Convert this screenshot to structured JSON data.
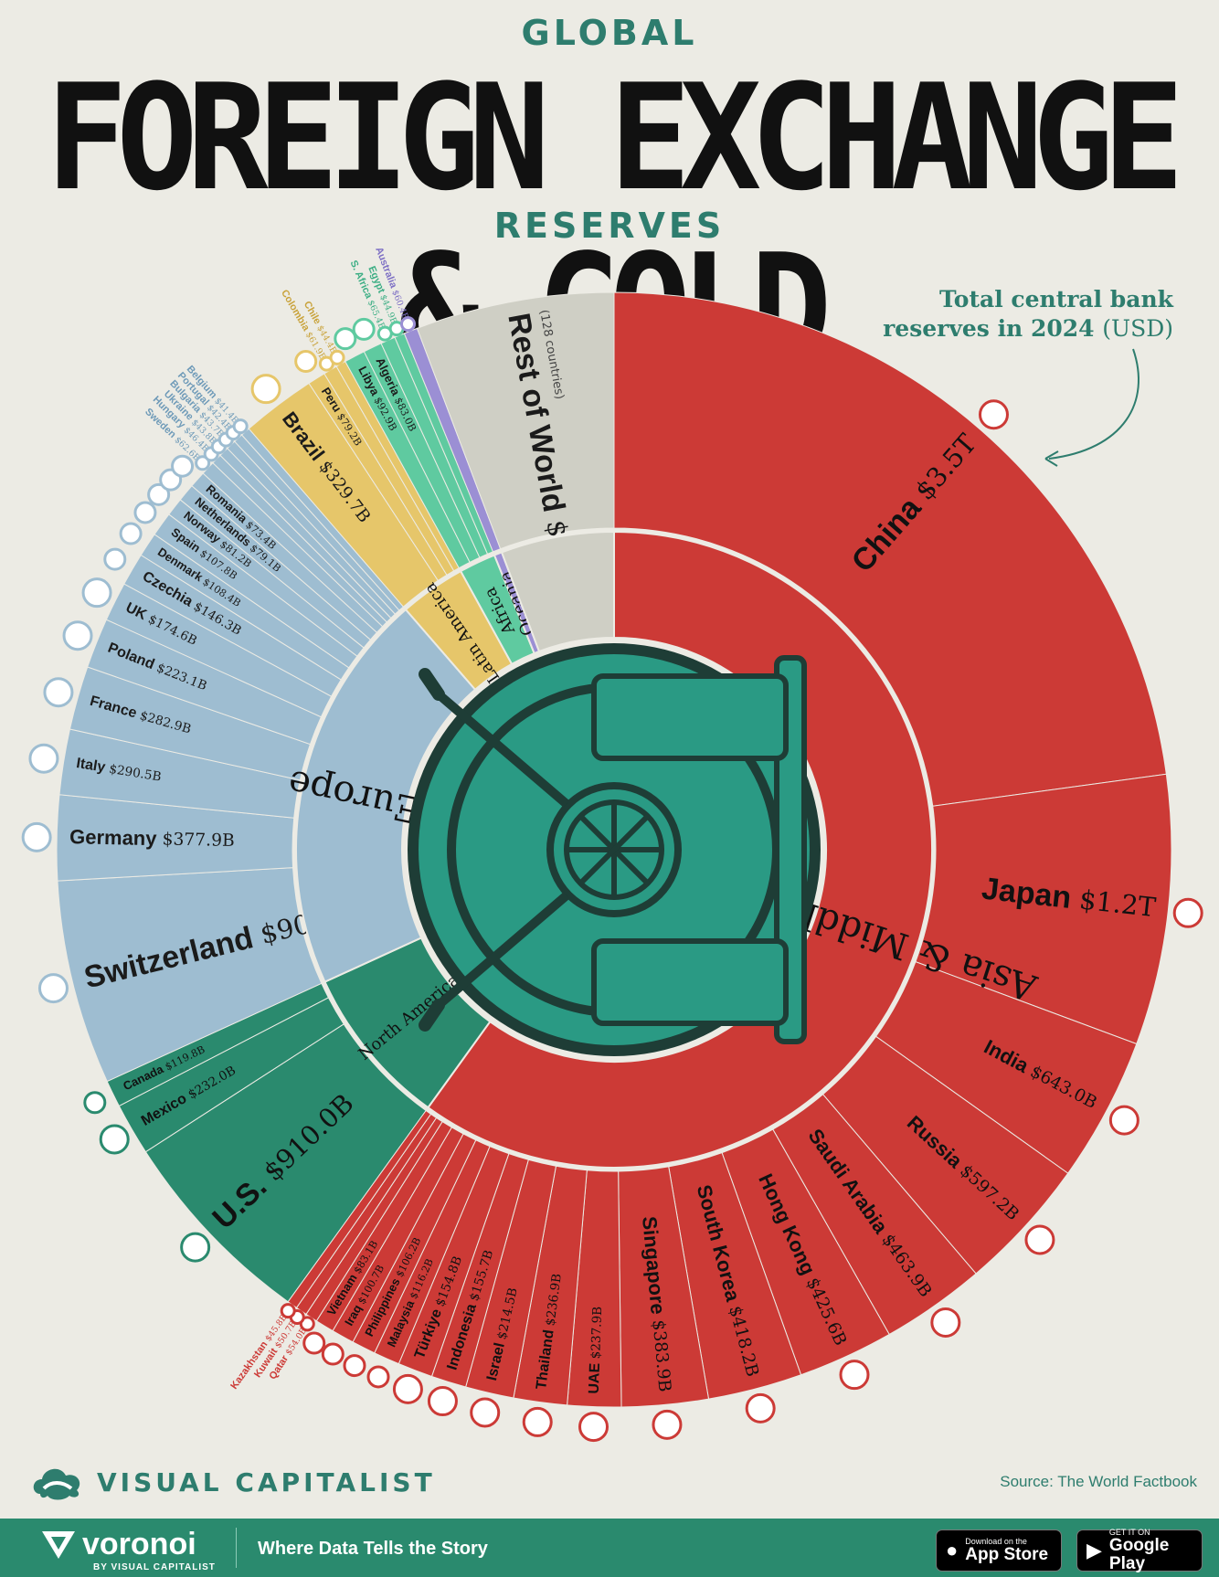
{
  "header": {
    "kicker": "GLOBAL",
    "title": "FOREIGN EXCHANGE & GOLD",
    "subtitle": "RESERVES"
  },
  "annotation": {
    "line1": "Total central bank",
    "line2": "reserves in 2024",
    "unit": "(USD)"
  },
  "colors": {
    "asia": "#cc3a36",
    "europe": "#9ebdd1",
    "north_america": "#2a8a6e",
    "latin_america": "#e6c66a",
    "africa": "#5fcaa0",
    "oceania": "#9b8fd4",
    "rest": "#cfcfc5",
    "vault": "#2a9a84",
    "background": "#ecebe4"
  },
  "icons": {
    "vault": "vault-door-icon",
    "flags": "country-flag-icon"
  },
  "chart_data": {
    "type": "sunburst",
    "title": "FOREIGN EXCHANGE & GOLD RESERVES",
    "regions": [
      {
        "name": "Asia & Middle East",
        "color": "#cc3a36"
      },
      {
        "name": "North America",
        "color": "#2a8a6e"
      },
      {
        "name": "Europe",
        "color": "#9ebdd1"
      },
      {
        "name": "Latin America",
        "color": "#e6c66a"
      },
      {
        "name": "Africa",
        "color": "#5fcaa0"
      },
      {
        "name": "Oceania",
        "color": "#9b8fd4"
      },
      {
        "name": "",
        "color": "#cfcfc5"
      }
    ],
    "countries": [
      {
        "name": "China",
        "value": 3500,
        "label": "$3.5T",
        "region": 0
      },
      {
        "name": "Japan",
        "value": 1200,
        "label": "$1.2T",
        "region": 0
      },
      {
        "name": "India",
        "value": 643.0,
        "label": "$643.0B",
        "region": 0
      },
      {
        "name": "Russia",
        "value": 597.2,
        "label": "$597.2B",
        "region": 0
      },
      {
        "name": "Saudi Arabia",
        "value": 463.9,
        "label": "$463.9B",
        "region": 0
      },
      {
        "name": "Hong Kong",
        "value": 425.6,
        "label": "$425.6B",
        "region": 0
      },
      {
        "name": "South Korea",
        "value": 418.2,
        "label": "$418.2B",
        "region": 0
      },
      {
        "name": "Singapore",
        "value": 383.9,
        "label": "$383.9B",
        "region": 0
      },
      {
        "name": "UAE",
        "value": 237.9,
        "label": "$237.9B",
        "region": 0
      },
      {
        "name": "Thailand",
        "value": 236.9,
        "label": "$236.9B",
        "region": 0
      },
      {
        "name": "Israel",
        "value": 214.5,
        "label": "$214.5B",
        "region": 0
      },
      {
        "name": "Indonesia",
        "value": 155.7,
        "label": "$155.7B",
        "region": 0
      },
      {
        "name": "Türkiye",
        "value": 154.8,
        "label": "$154.8B",
        "region": 0
      },
      {
        "name": "Malaysia",
        "value": 116.2,
        "label": "$116.2B",
        "region": 0
      },
      {
        "name": "Philippines",
        "value": 106.2,
        "label": "$106.2B",
        "region": 0
      },
      {
        "name": "Iraq",
        "value": 100.7,
        "label": "$100.7B",
        "region": 0
      },
      {
        "name": "Vietnam",
        "value": 83.1,
        "label": "$83.1B",
        "region": 0
      },
      {
        "name": "Qatar",
        "value": 54.0,
        "label": "$54.0B",
        "region": 0
      },
      {
        "name": "Kuwait",
        "value": 50.7,
        "label": "$50.7B",
        "region": 0
      },
      {
        "name": "Kazakhstan",
        "value": 45.8,
        "label": "$45.8B",
        "region": 0
      },
      {
        "name": "U.S.",
        "value": 910.0,
        "label": "$910.0B",
        "region": 1
      },
      {
        "name": "Mexico",
        "value": 232.0,
        "label": "$232.0B",
        "region": 1
      },
      {
        "name": "Canada",
        "value": 119.8,
        "label": "$119.8B",
        "region": 1
      },
      {
        "name": "Switzerland",
        "value": 909.4,
        "label": "$909.4B",
        "region": 2
      },
      {
        "name": "Germany",
        "value": 377.9,
        "label": "$377.9B",
        "region": 2
      },
      {
        "name": "Italy",
        "value": 290.5,
        "label": "$290.5B",
        "region": 2
      },
      {
        "name": "France",
        "value": 282.9,
        "label": "$282.9B",
        "region": 2
      },
      {
        "name": "Poland",
        "value": 223.1,
        "label": "$223.1B",
        "region": 2
      },
      {
        "name": "UK",
        "value": 174.6,
        "label": "$174.6B",
        "region": 2
      },
      {
        "name": "Czechia",
        "value": 146.3,
        "label": "$146.3B",
        "region": 2
      },
      {
        "name": "Denmark",
        "value": 108.4,
        "label": "$108.4B",
        "region": 2
      },
      {
        "name": "Spain",
        "value": 107.8,
        "label": "$107.8B",
        "region": 2
      },
      {
        "name": "Norway",
        "value": 81.2,
        "label": "$81.2B",
        "region": 2
      },
      {
        "name": "Netherlands",
        "value": 79.1,
        "label": "$79.1B",
        "region": 2
      },
      {
        "name": "Romania",
        "value": 73.4,
        "label": "$73.4B",
        "region": 2
      },
      {
        "name": "Sweden",
        "value": 62.6,
        "label": "$62.6B",
        "region": 2
      },
      {
        "name": "Hungary",
        "value": 46.4,
        "label": "$46.4B",
        "region": 2
      },
      {
        "name": "Ukraine",
        "value": 43.8,
        "label": "$43.8B",
        "region": 2
      },
      {
        "name": "Bulgaria",
        "value": 43.7,
        "label": "$43.7B",
        "region": 2
      },
      {
        "name": "Portugal",
        "value": 42.4,
        "label": "$42.4B",
        "region": 2
      },
      {
        "name": "Belgium",
        "value": 41.4,
        "label": "$41.4B",
        "region": 2
      },
      {
        "name": "Brazil",
        "value": 329.7,
        "label": "$329.7B",
        "region": 3
      },
      {
        "name": "Peru",
        "value": 79.2,
        "label": "$79.2B",
        "region": 3
      },
      {
        "name": "Colombia",
        "value": 61.9,
        "label": "$61.9B",
        "region": 3
      },
      {
        "name": "Chile",
        "value": 44.4,
        "label": "$44.4B",
        "region": 3
      },
      {
        "name": "Libya",
        "value": 92.9,
        "label": "$92.9B",
        "region": 4
      },
      {
        "name": "Algeria",
        "value": 83.0,
        "label": "$83.0B",
        "region": 4
      },
      {
        "name": "S. Africa",
        "value": 65.4,
        "label": "$65.4B",
        "region": 4
      },
      {
        "name": "Egypt",
        "value": 44.9,
        "label": "$44.9B",
        "region": 4
      },
      {
        "name": "Australia",
        "value": 60.4,
        "label": "$60.4B",
        "region": 5
      },
      {
        "name": "Rest of World",
        "value": 881.0,
        "label": "$881.0B",
        "region": 6,
        "note": "(128 countries)"
      }
    ]
  },
  "footer": {
    "brand": "VISUAL CAPITALIST",
    "source": "Source: The World Factbook",
    "voronoi": "voronoi",
    "voronoi_by": "BY VISUAL CAPITALIST",
    "tagline": "Where Data Tells the Story",
    "appstore_small": "Download on the",
    "appstore_big": "App Store",
    "gplay_small": "GET IT ON",
    "gplay_big": "Google Play"
  }
}
